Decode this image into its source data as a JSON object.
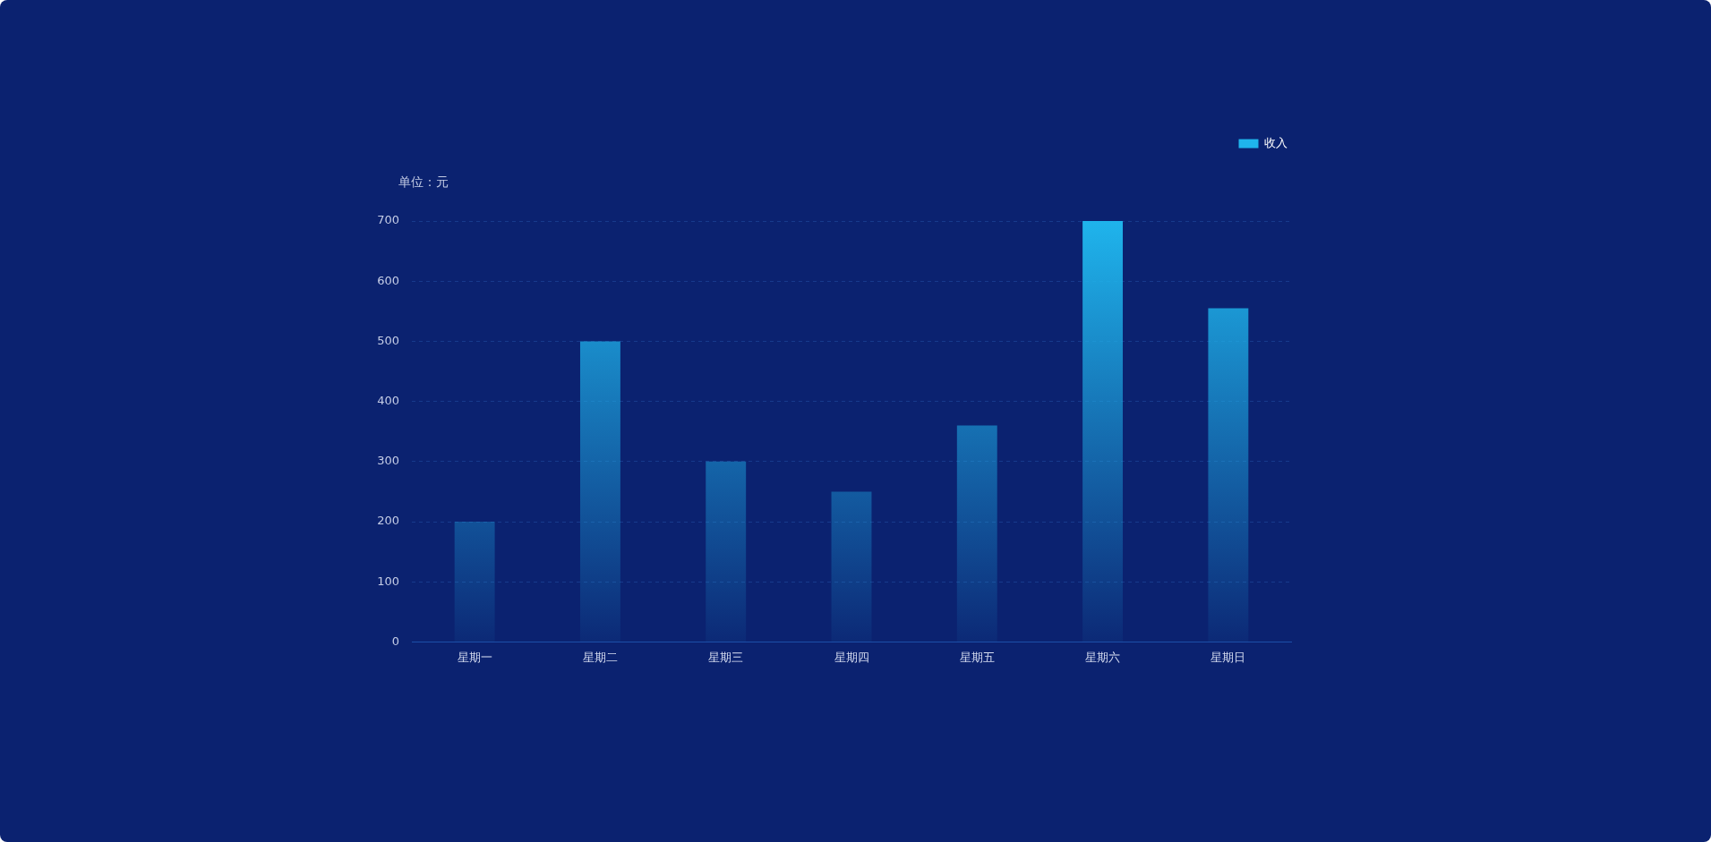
{
  "chart_data": {
    "type": "bar",
    "ylabel": "单位：元",
    "categories": [
      "星期一",
      "星期二",
      "星期三",
      "星期四",
      "星期五",
      "星期六",
      "星期日"
    ],
    "series": [
      {
        "name": "收入",
        "color": "#1fb4ec",
        "values": [
          200,
          500,
          300,
          250,
          360,
          700,
          555
        ]
      }
    ],
    "ylim": [
      0,
      700
    ],
    "yticks": [
      0,
      100,
      200,
      300,
      400,
      500,
      600,
      700
    ],
    "grid": "y",
    "legend": "top right"
  }
}
